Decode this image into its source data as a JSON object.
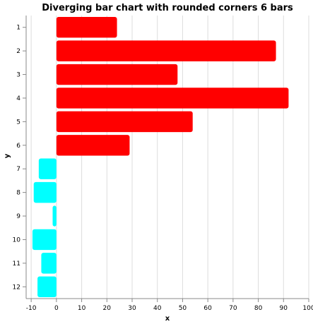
{
  "chart_data": {
    "type": "bar",
    "orientation": "horizontal",
    "title": "Diverging bar chart with rounded corners 6 bars",
    "xlabel": "x",
    "ylabel": "y",
    "xlim": [
      -12,
      100
    ],
    "x_ticks": [
      -10,
      0,
      10,
      20,
      30,
      40,
      50,
      60,
      70,
      80,
      90,
      100
    ],
    "categories": [
      "1",
      "2",
      "3",
      "4",
      "5",
      "6",
      "7",
      "8",
      "9",
      "10",
      "11",
      "12"
    ],
    "values": [
      24,
      87,
      48,
      92,
      54,
      29,
      -7,
      -9,
      -1.5,
      -9.5,
      -6,
      -7.5
    ],
    "colors": {
      "positive": "#ff0000",
      "negative": "#00ffff"
    },
    "grid": "vertical",
    "legend": "none"
  }
}
